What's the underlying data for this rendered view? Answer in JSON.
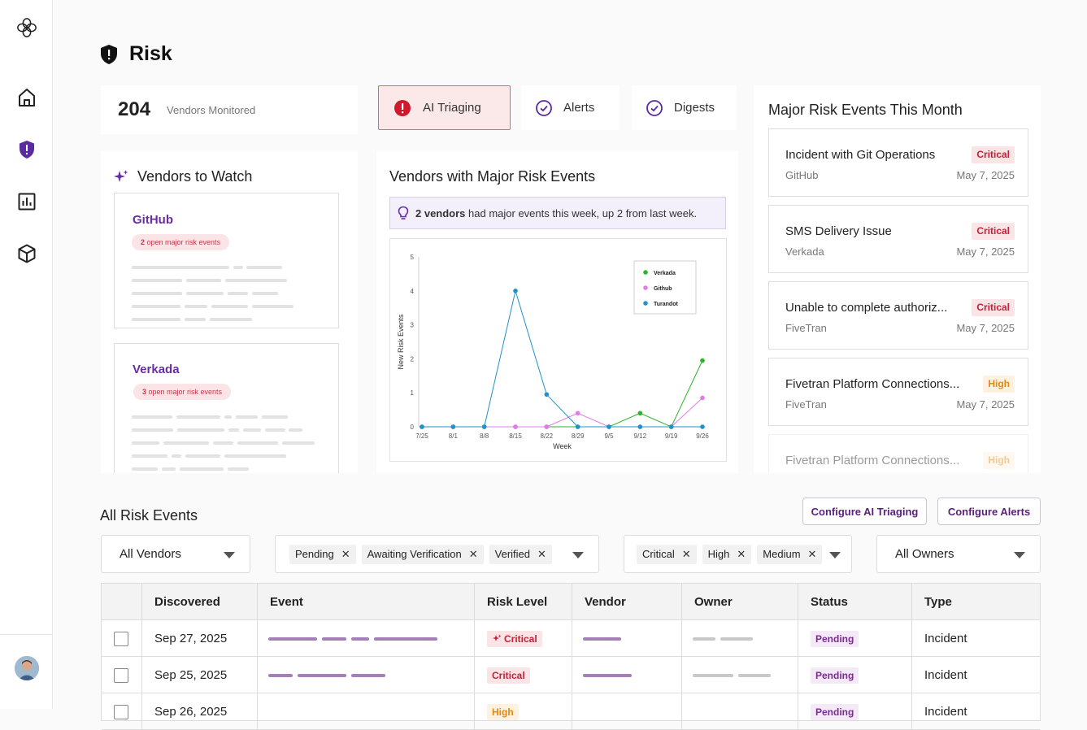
{
  "page": {
    "title": "Risk"
  },
  "stats": {
    "vendors_count": "204",
    "vendors_label": "Vendors Monitored"
  },
  "tabs": [
    {
      "label": "AI Triaging",
      "icon": "alert-circle-icon"
    },
    {
      "label": "Alerts",
      "icon": "check-circle-icon"
    },
    {
      "label": "Digests",
      "icon": "check-circle-icon"
    }
  ],
  "vendors_to_watch": {
    "title": "Vendors to Watch",
    "items": [
      {
        "name": "GitHub",
        "count": "2",
        "suffix": " open major risk events"
      },
      {
        "name": "Verkada",
        "count": "3",
        "suffix": " open major risk events"
      }
    ]
  },
  "vendors_major": {
    "title": "Vendors with Major Risk Events",
    "banner_bold": "2 vendors",
    "banner_text": " had major events this week, up 2 from last week."
  },
  "chart_data": {
    "type": "line",
    "title": "",
    "xlabel": "Week",
    "ylabel": "New Risk Events",
    "x": [
      "7/25",
      "8/1",
      "8/8",
      "8/15",
      "8/22",
      "8/29",
      "9/5",
      "9/12",
      "9/19",
      "9/26"
    ],
    "ylim": [
      0,
      5
    ],
    "yticks": [
      "0",
      "1",
      "2",
      "3",
      "4",
      "5"
    ],
    "legend_position": "top-right",
    "series": [
      {
        "name": "Verkada",
        "color": "#2ab52a",
        "values": [
          0,
          0,
          0,
          0,
          0,
          0,
          0,
          0.4,
          0,
          1.95
        ]
      },
      {
        "name": "Github",
        "color": "#e07ce8",
        "values": [
          0,
          0,
          0,
          0,
          0,
          0.4,
          0,
          0,
          0,
          0.85
        ]
      },
      {
        "name": "Turandot",
        "color": "#1f93c9",
        "values": [
          0,
          0,
          0,
          4,
          0.95,
          0,
          0,
          0,
          0,
          0
        ]
      }
    ]
  },
  "major_events": {
    "title": "Major Risk Events This Month",
    "items": [
      {
        "title": "Incident with Git Operations",
        "level": "Critical",
        "vendor": "GitHub",
        "date": "May 7, 2025"
      },
      {
        "title": "SMS Delivery Issue",
        "level": "Critical",
        "vendor": "Verkada",
        "date": "May 7, 2025"
      },
      {
        "title": "Unable to complete authoriz...",
        "level": "Critical",
        "vendor": "FiveTran",
        "date": "May 7, 2025"
      },
      {
        "title": "Fivetran Platform Connections...",
        "level": "High",
        "vendor": "FiveTran",
        "date": "May 7, 2025"
      },
      {
        "title": "Fivetran Platform Connections...",
        "level": "High",
        "vendor": "",
        "date": ""
      }
    ]
  },
  "all_events": {
    "title": "All Risk Events",
    "btn_ai": "Configure AI Triaging",
    "btn_alerts": "Configure Alerts",
    "filters": {
      "vendors": "All Vendors",
      "statuses": [
        "Pending",
        "Awaiting Verification",
        "Verified"
      ],
      "levels": [
        "Critical",
        "High",
        "Medium"
      ],
      "owners": "All Owners"
    },
    "columns": [
      "Discovered",
      "Event",
      "Risk Level",
      "Vendor",
      "Owner",
      "Status",
      "Type"
    ],
    "rows": [
      {
        "discovered": "Sep 27, 2025",
        "risk": "Critical",
        "status": "Pending",
        "type": "Incident"
      },
      {
        "discovered": "Sep 25, 2025",
        "risk": "Critical",
        "status": "Pending",
        "type": "Incident"
      },
      {
        "discovered": "Sep 26, 2025",
        "risk": "High",
        "status": "Pending",
        "type": "Incident"
      }
    ]
  }
}
